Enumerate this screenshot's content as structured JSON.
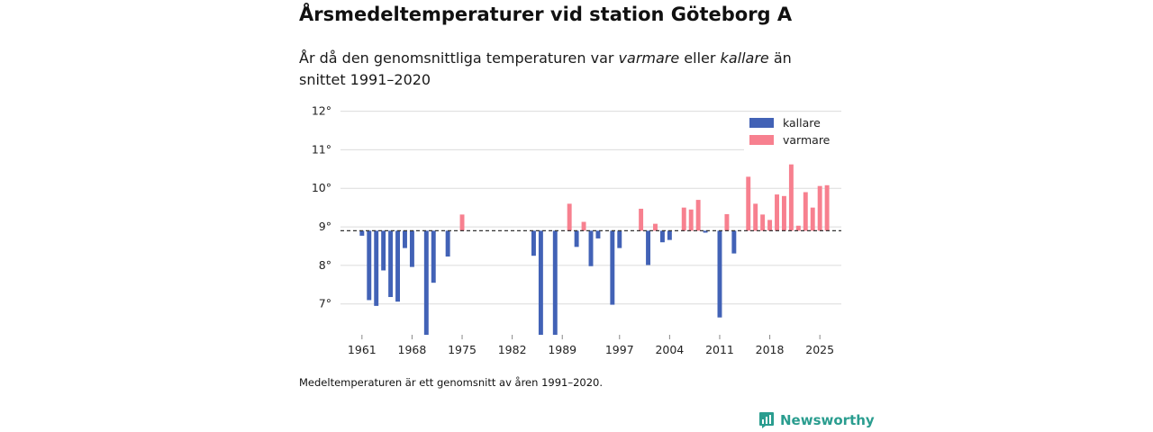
{
  "header": {
    "title": "Årsmedeltemperaturer vid station Göteborg A",
    "subtitle_part1": "År då den genomsnittliga temperaturen var ",
    "subtitle_warm": "varmare",
    "subtitle_part2": " eller ",
    "subtitle_cold": "kallare",
    "subtitle_part3": " än snittet 1991–2020"
  },
  "footer": {
    "note": "Medeltemperaturen är ett genomsnitt av åren 1991–2020.",
    "brand": "Newsworthy"
  },
  "colors": {
    "cold": "#4262b6",
    "warm": "#f7808f",
    "brand": "#2a9d8f"
  },
  "chart_data": {
    "type": "bar",
    "title": "Årsmedeltemperaturer vid station Göteborg A",
    "xlabel": "",
    "ylabel": "",
    "baseline": 8.9,
    "ylim": [
      6.2,
      12.2
    ],
    "yticks": [
      7,
      8,
      9,
      10,
      11,
      12
    ],
    "ytick_labels": [
      "7°",
      "8°",
      "9°",
      "10°",
      "11°",
      "12°"
    ],
    "xlim": [
      1958,
      2028
    ],
    "xticks": [
      1961,
      1968,
      1975,
      1982,
      1989,
      1997,
      2004,
      2011,
      2018,
      2025
    ],
    "legend": {
      "position": "top-right",
      "entries": [
        "kallare",
        "varmare"
      ]
    },
    "series": [
      {
        "name": "temperatur",
        "x": [
          1961,
          1962,
          1963,
          1964,
          1965,
          1966,
          1967,
          1968,
          1970,
          1971,
          1973,
          1975,
          1985,
          1986,
          1988,
          1990,
          1991,
          1992,
          1993,
          1994,
          1996,
          1997,
          2000,
          2001,
          2002,
          2003,
          2004,
          2006,
          2007,
          2008,
          2009,
          2011,
          2012,
          2013,
          2015,
          2016,
          2017,
          2018,
          2019,
          2020,
          2021,
          2022,
          2023,
          2024,
          2025,
          2026
        ],
        "values": [
          8.77,
          7.1,
          6.95,
          7.87,
          7.18,
          7.06,
          8.45,
          7.96,
          6.2,
          7.55,
          8.23,
          9.32,
          8.25,
          6.2,
          6.2,
          9.6,
          8.48,
          9.13,
          7.98,
          8.7,
          6.98,
          8.45,
          9.47,
          8.01,
          9.08,
          8.6,
          8.66,
          9.5,
          9.45,
          9.7,
          8.85,
          6.65,
          9.33,
          8.31,
          10.3,
          9.6,
          9.32,
          9.18,
          9.84,
          9.8,
          10.62,
          9.03,
          9.9,
          9.5,
          10.06,
          10.08
        ]
      }
    ]
  }
}
